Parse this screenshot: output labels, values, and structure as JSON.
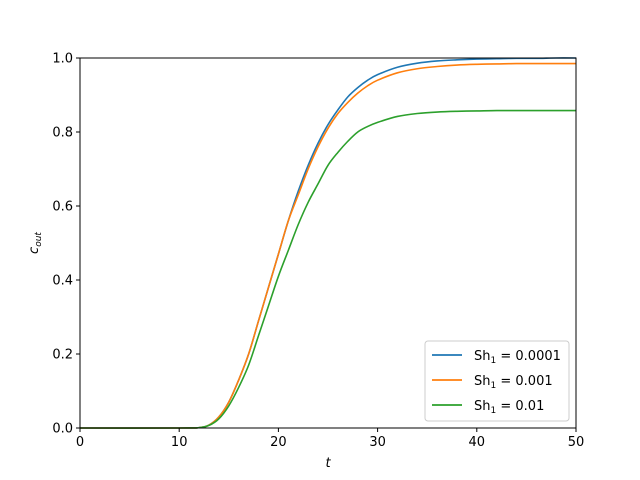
{
  "chart_data": {
    "type": "line",
    "xlabel": "t",
    "ylabel": {
      "base": "c",
      "sub": "out"
    },
    "xlim": [
      0,
      50
    ],
    "ylim": [
      0,
      1
    ],
    "xticks": [
      "0",
      "10",
      "20",
      "30",
      "40",
      "50"
    ],
    "yticks": [
      "0.0",
      "0.2",
      "0.4",
      "0.6",
      "0.8",
      "1.0"
    ],
    "grid": false,
    "legend_position": "bottom-right",
    "series": [
      {
        "label_base": "Sh",
        "label_sub": "1",
        "label_value": " = 0.0001",
        "color": "#1f77b4",
        "x": [
          0,
          10,
          12,
          13,
          14,
          15,
          16,
          17,
          18,
          19,
          20,
          21,
          22,
          23,
          24,
          25,
          26,
          27,
          28,
          29,
          30,
          32,
          34,
          36,
          38,
          40,
          42,
          44,
          46,
          48,
          50
        ],
        "y": [
          0,
          0,
          0.001,
          0.008,
          0.03,
          0.07,
          0.13,
          0.2,
          0.29,
          0.38,
          0.47,
          0.56,
          0.64,
          0.71,
          0.77,
          0.82,
          0.86,
          0.895,
          0.92,
          0.94,
          0.955,
          0.975,
          0.986,
          0.992,
          0.995,
          0.997,
          0.998,
          0.999,
          0.999,
          1.0,
          1.0
        ]
      },
      {
        "label_base": "Sh",
        "label_sub": "1",
        "label_value": " = 0.001",
        "color": "#ff7f0e",
        "x": [
          0,
          10,
          12,
          13,
          14,
          15,
          16,
          17,
          18,
          19,
          20,
          21,
          22,
          23,
          24,
          25,
          26,
          27,
          28,
          29,
          30,
          32,
          34,
          36,
          38,
          40,
          42,
          44,
          46,
          48,
          50
        ],
        "y": [
          0,
          0,
          0.001,
          0.008,
          0.03,
          0.07,
          0.13,
          0.2,
          0.29,
          0.38,
          0.47,
          0.56,
          0.63,
          0.7,
          0.76,
          0.81,
          0.85,
          0.88,
          0.905,
          0.925,
          0.94,
          0.96,
          0.971,
          0.977,
          0.981,
          0.983,
          0.984,
          0.985,
          0.985,
          0.985,
          0.985
        ]
      },
      {
        "label_base": "Sh",
        "label_sub": "1",
        "label_value": " = 0.01",
        "color": "#2ca02c",
        "x": [
          0,
          10,
          12,
          13,
          14,
          15,
          16,
          17,
          18,
          19,
          20,
          21,
          22,
          23,
          24,
          25,
          26,
          27,
          28,
          29,
          30,
          32,
          34,
          36,
          38,
          40,
          42,
          44,
          46,
          48,
          50
        ],
        "y": [
          0,
          0,
          0.001,
          0.007,
          0.025,
          0.06,
          0.11,
          0.17,
          0.25,
          0.33,
          0.41,
          0.48,
          0.55,
          0.61,
          0.66,
          0.71,
          0.745,
          0.775,
          0.8,
          0.815,
          0.826,
          0.842,
          0.85,
          0.854,
          0.856,
          0.857,
          0.858,
          0.858,
          0.858,
          0.858,
          0.858
        ]
      }
    ]
  }
}
